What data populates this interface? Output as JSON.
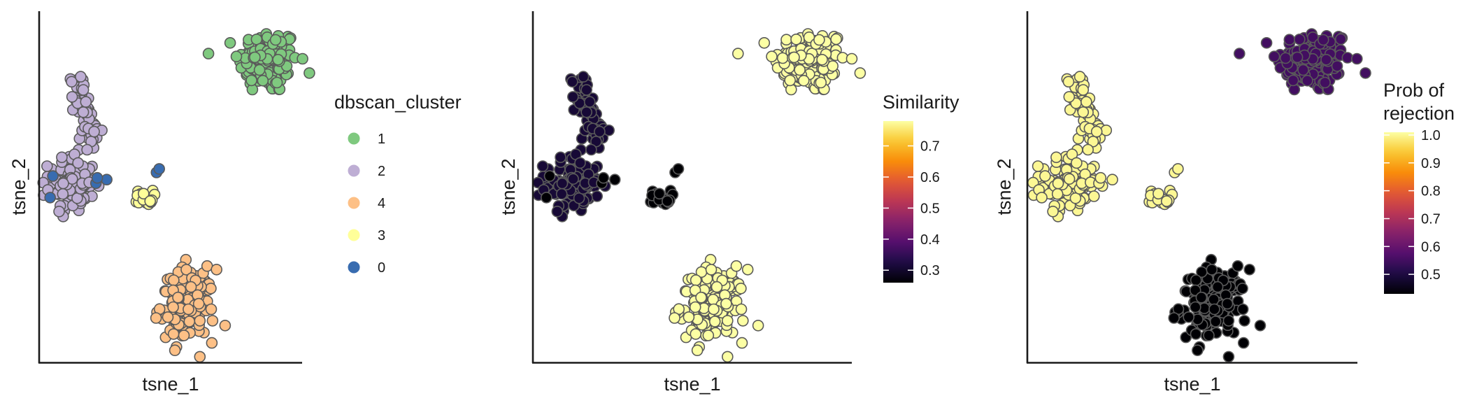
{
  "chart_data": [
    {
      "type": "scatter",
      "xlabel": "tsne_1",
      "ylabel": "tsne_2",
      "color_by": "dbscan_cluster",
      "legend": {
        "title": "dbscan_cluster",
        "placement": "right",
        "entries": [
          {
            "label": "1",
            "color": "#7fc97f"
          },
          {
            "label": "2",
            "color": "#beaed4"
          },
          {
            "label": "4",
            "color": "#fdc086"
          },
          {
            "label": "3",
            "color": "#ffff99"
          },
          {
            "label": "0",
            "color": "#386cb0"
          }
        ]
      },
      "grid": false,
      "clusters": [
        {
          "label": "1",
          "center": [
            37,
            34
          ],
          "spread": [
            5.5,
            4.5
          ],
          "n": 150,
          "color": "#7fc97f"
        },
        {
          "label": "2",
          "shape": "branch",
          "n": 170,
          "color": "#beaed4"
        },
        {
          "label": "3",
          "center": [
            -9,
            -4
          ],
          "spread": [
            1.6,
            1.0
          ],
          "n": 20,
          "color": "#ffff99"
        },
        {
          "label": "4",
          "center": [
            7,
            -34
          ],
          "spread": [
            5.0,
            5.0
          ],
          "n": 150,
          "color": "#fdc086"
        },
        {
          "label": "0",
          "points": [
            [
              -23,
              1
            ],
            [
              -27,
              0
            ],
            [
              -26.5,
              1.5
            ],
            [
              -44,
              -4
            ],
            [
              -43,
              2
            ],
            [
              -4.5,
              3
            ],
            [
              -3.5,
              4
            ]
          ],
          "color": "#386cb0"
        }
      ]
    },
    {
      "type": "scatter",
      "xlabel": "tsne_1",
      "ylabel": "tsne_2",
      "color_by": "Similarity",
      "legend": {
        "title": "Similarity",
        "type": "colorbar",
        "placement": "right",
        "palette": "inferno",
        "range": [
          0.26,
          0.78
        ],
        "ticks": [
          "0.3",
          "0.4",
          "0.5",
          "0.6",
          "0.7"
        ]
      },
      "grid": false,
      "cluster_values": {
        "1": 0.78,
        "2": 0.31,
        "3": 0.26,
        "4": 0.78,
        "0": 0.26
      }
    },
    {
      "type": "scatter",
      "xlabel": "tsne_1",
      "ylabel": "tsne_2",
      "color_by": "Prob of rejection",
      "legend": {
        "title": [
          "Prob of",
          "rejection"
        ],
        "type": "colorbar",
        "placement": "right",
        "palette": "inferno",
        "range": [
          0.43,
          1.01
        ],
        "ticks": [
          "0.5",
          "0.6",
          "0.7",
          "0.8",
          "0.9",
          "1.0"
        ]
      },
      "grid": false,
      "cluster_values": {
        "1": 0.55,
        "2": 1.0,
        "3": 1.0,
        "4": 0.43,
        "0": 1.0
      }
    }
  ]
}
